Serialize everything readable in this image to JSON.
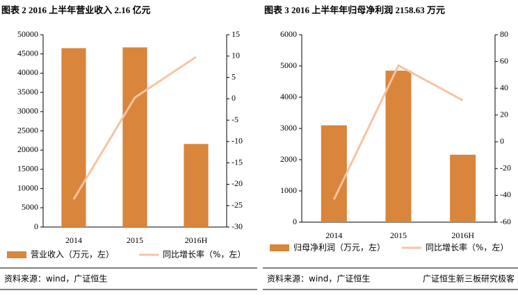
{
  "chart_data": [
    {
      "type": "bar-line",
      "title": "图表 2 2016 上半年营业收入 2.16 亿元",
      "categories": [
        "2014",
        "2015",
        "2016H"
      ],
      "series": [
        {
          "name": "营业收入（万元，左）",
          "type": "bar",
          "color": "#d9853b",
          "values": [
            46500,
            46700,
            21600
          ]
        },
        {
          "name": "同比增长率（%，左）",
          "type": "line",
          "axis": "y2",
          "color": "#f7c3a3",
          "values": [
            -23.5,
            0.3,
            9.8
          ]
        }
      ],
      "ylim": [
        0,
        50000
      ],
      "yticks": [
        0,
        5000,
        10000,
        15000,
        20000,
        25000,
        30000,
        35000,
        40000,
        45000,
        50000
      ],
      "y2lim": [
        -30,
        15
      ],
      "y2ticks": [
        -30,
        -25,
        -20,
        -15,
        -10,
        -5,
        0,
        5,
        10,
        15
      ],
      "note": "资料来源：wind，广证恒生"
    },
    {
      "type": "bar-line",
      "title": "图表 3 2016 上半年年归母净利润 2158.63 万元",
      "categories": [
        "2014",
        "2015",
        "2016H"
      ],
      "series": [
        {
          "name": "归母净利润（万元，左）",
          "type": "bar",
          "color": "#d9853b",
          "values": [
            3100,
            4850,
            2158.63
          ]
        },
        {
          "name": "同比增长率（%，左）",
          "type": "line",
          "axis": "y2",
          "color": "#f7c3a3",
          "values": [
            -43,
            57,
            31
          ]
        }
      ],
      "ylim": [
        0,
        6000
      ],
      "yticks": [
        0,
        1000,
        2000,
        3000,
        4000,
        5000,
        6000
      ],
      "y2lim": [
        -60,
        80
      ],
      "y2ticks": [
        -60,
        -40,
        -20,
        0,
        20,
        40,
        60,
        80
      ],
      "note": "资料来源：wind，广证恒生"
    }
  ],
  "watermark": "广证恒生新三板研究极客"
}
